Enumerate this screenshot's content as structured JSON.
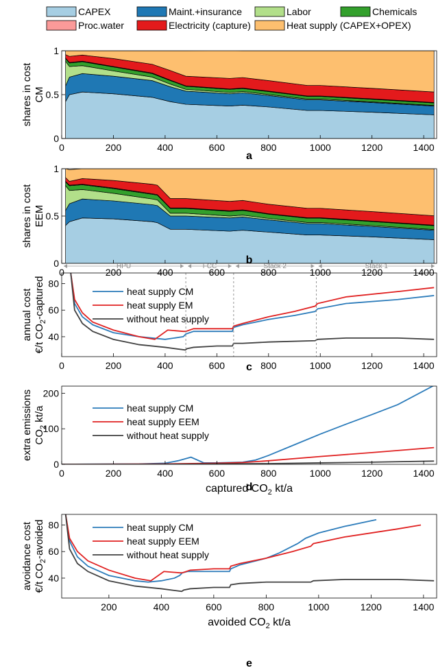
{
  "legend": {
    "items": [
      {
        "label": "CAPEX",
        "color": "#a6cee3"
      },
      {
        "label": "Maint.+insurance",
        "color": "#1f78b4"
      },
      {
        "label": "Labor",
        "color": "#b2df8a"
      },
      {
        "label": "Chemicals",
        "color": "#33a02c"
      },
      {
        "label": "Proc.water",
        "color": "#fb9a99"
      },
      {
        "label": "Electricity (capture)",
        "color": "#e31a1c"
      },
      {
        "label": "Heat supply (CAPEX+OPEX)",
        "color": "#fdbf6f"
      }
    ]
  },
  "chart_data": [
    {
      "id": "a",
      "type": "area",
      "letter": "a",
      "ylabel": [
        "shares in cost",
        "CM"
      ],
      "xlim": [
        0,
        1450
      ],
      "ylim": [
        0,
        1
      ],
      "xticks": [
        "0",
        "200",
        "400",
        "600",
        "800",
        "1000",
        "1200",
        "1400"
      ],
      "yticks": [
        "0",
        "0.5",
        "1"
      ],
      "x": [
        15,
        30,
        80,
        200,
        350,
        420,
        480,
        650,
        700,
        800,
        950,
        1000,
        1200,
        1440
      ],
      "series": [
        {
          "name": "CAPEX",
          "values": [
            0.42,
            0.5,
            0.53,
            0.51,
            0.47,
            0.42,
            0.39,
            0.37,
            0.38,
            0.36,
            0.32,
            0.32,
            0.3,
            0.27
          ]
        },
        {
          "name": "Maint.+insurance",
          "values": [
            0.18,
            0.2,
            0.21,
            0.2,
            0.19,
            0.17,
            0.15,
            0.14,
            0.14,
            0.13,
            0.12,
            0.12,
            0.11,
            0.1
          ]
        },
        {
          "name": "Labor",
          "values": [
            0.28,
            0.12,
            0.09,
            0.06,
            0.04,
            0.03,
            0.02,
            0.015,
            0.015,
            0.012,
            0.01,
            0.01,
            0.008,
            0.007
          ]
        },
        {
          "name": "Chemicals",
          "values": [
            0.03,
            0.04,
            0.045,
            0.045,
            0.04,
            0.04,
            0.035,
            0.035,
            0.035,
            0.033,
            0.03,
            0.03,
            0.029,
            0.028
          ]
        },
        {
          "name": "Proc.water",
          "values": [
            0.006,
            0.006,
            0.006,
            0.006,
            0.006,
            0.005,
            0.005,
            0.005,
            0.005,
            0.005,
            0.005,
            0.005,
            0.005,
            0.005
          ]
        },
        {
          "name": "Electricity (capture)",
          "values": [
            0.04,
            0.07,
            0.07,
            0.09,
            0.1,
            0.11,
            0.11,
            0.12,
            0.12,
            0.12,
            0.12,
            0.12,
            0.12,
            0.12
          ]
        },
        {
          "name": "Heat supply (CAPEX+OPEX)",
          "values": [
            0.044,
            0.064,
            0.049,
            0.089,
            0.154,
            0.225,
            0.29,
            0.32,
            0.305,
            0.34,
            0.395,
            0.395,
            0.428,
            0.47
          ]
        }
      ]
    },
    {
      "id": "b",
      "type": "area",
      "letter": "b",
      "ylabel": [
        "shares in cost",
        "EEM"
      ],
      "xlim": [
        0,
        1450
      ],
      "ylim": [
        0,
        1
      ],
      "xticks": [
        "0",
        "200",
        "400",
        "600",
        "800",
        "1000",
        "1200",
        "1400"
      ],
      "yticks": [
        "0",
        "0.5",
        "1"
      ],
      "x": [
        15,
        30,
        80,
        200,
        350,
        370,
        420,
        480,
        650,
        700,
        800,
        950,
        1000,
        1200,
        1440
      ],
      "series": [
        {
          "name": "CAPEX",
          "values": [
            0.4,
            0.44,
            0.48,
            0.47,
            0.44,
            0.43,
            0.36,
            0.36,
            0.34,
            0.35,
            0.33,
            0.3,
            0.3,
            0.28,
            0.25
          ]
        },
        {
          "name": "Maint.+insurance",
          "values": [
            0.16,
            0.19,
            0.2,
            0.19,
            0.18,
            0.18,
            0.14,
            0.14,
            0.14,
            0.14,
            0.13,
            0.12,
            0.12,
            0.11,
            0.1
          ]
        },
        {
          "name": "Labor",
          "values": [
            0.26,
            0.14,
            0.1,
            0.08,
            0.06,
            0.06,
            0.03,
            0.03,
            0.02,
            0.02,
            0.015,
            0.012,
            0.012,
            0.01,
            0.008
          ]
        },
        {
          "name": "Chemicals",
          "values": [
            0.04,
            0.05,
            0.05,
            0.05,
            0.05,
            0.05,
            0.05,
            0.05,
            0.05,
            0.05,
            0.045,
            0.045,
            0.045,
            0.042,
            0.04
          ]
        },
        {
          "name": "Proc.water",
          "values": [
            0.006,
            0.006,
            0.006,
            0.006,
            0.006,
            0.006,
            0.005,
            0.005,
            0.005,
            0.005,
            0.005,
            0.005,
            0.005,
            0.005,
            0.005
          ]
        },
        {
          "name": "Electricity (capture)",
          "values": [
            0.04,
            0.04,
            0.06,
            0.08,
            0.1,
            0.1,
            0.1,
            0.1,
            0.1,
            0.1,
            0.1,
            0.1,
            0.1,
            0.1,
            0.1
          ]
        },
        {
          "name": "Heat supply (CAPEX+OPEX)",
          "values": [
            0.094,
            0.124,
            0.104,
            0.124,
            0.164,
            0.174,
            0.315,
            0.315,
            0.345,
            0.335,
            0.375,
            0.418,
            0.418,
            0.453,
            0.497
          ]
        }
      ]
    },
    {
      "id": "c",
      "type": "line",
      "letter": "c",
      "ylabel": [
        "annual cost",
        "€/t CO₂-captured"
      ],
      "xlim": [
        0,
        1450
      ],
      "ylim": [
        25,
        88
      ],
      "xticks": [
        "0",
        "200",
        "400",
        "600",
        "800",
        "1000",
        "1200",
        "1400"
      ],
      "yticks": [
        "40",
        "60",
        "80"
      ],
      "regions": [
        {
          "label": "HPU",
          "from": 0,
          "to": 480
        },
        {
          "label": "FCC",
          "from": 480,
          "to": 665
        },
        {
          "label": "Stack 2",
          "from": 665,
          "to": 985
        },
        {
          "label": "Stack 1",
          "from": 985,
          "to": 1450
        }
      ],
      "series": [
        {
          "name": "heat supply CM",
          "color": "#2b7bba",
          "x": [
            35,
            50,
            80,
            120,
            200,
            300,
            400,
            470,
            480,
            510,
            600,
            660,
            665,
            700,
            800,
            900,
            980,
            990,
            1100,
            1300,
            1440
          ],
          "y": [
            88,
            65,
            55,
            49,
            43,
            40,
            38,
            40,
            42,
            44,
            44,
            44,
            47,
            49,
            53,
            56,
            59,
            61,
            65,
            68,
            71
          ]
        },
        {
          "name": "heat supply EM",
          "color": "#e02020",
          "x": [
            35,
            50,
            80,
            120,
            200,
            300,
            360,
            410,
            470,
            480,
            510,
            600,
            660,
            665,
            700,
            800,
            900,
            980,
            990,
            1100,
            1300,
            1440
          ],
          "y": [
            88,
            68,
            58,
            51,
            45,
            40,
            38,
            45,
            44,
            44,
            46,
            46,
            46,
            48,
            50,
            55,
            59,
            63,
            65,
            70,
            74,
            77
          ]
        },
        {
          "name": "without heat supply",
          "color": "#404040",
          "x": [
            35,
            50,
            80,
            120,
            200,
            300,
            400,
            478,
            485,
            510,
            600,
            660,
            665,
            700,
            800,
            980,
            990,
            1100,
            1300,
            1440
          ],
          "y": [
            88,
            60,
            50,
            44,
            38,
            34,
            32,
            30,
            31,
            32,
            33,
            33,
            35,
            35,
            36,
            37,
            38,
            39,
            39,
            38
          ]
        }
      ]
    },
    {
      "id": "d",
      "type": "line",
      "letter": "d",
      "ylabel": [
        "extra emissions",
        "CO₂ kt/a"
      ],
      "xlabel": "captured CO₂ kt/a",
      "xlim": [
        0,
        1450
      ],
      "ylim": [
        0,
        220
      ],
      "xticks": [
        "0",
        "200",
        "400",
        "600",
        "800",
        "1000",
        "1200",
        "1400"
      ],
      "yticks": [
        "0",
        "100",
        "200"
      ],
      "series": [
        {
          "name": "heat supply CM",
          "color": "#2b7bba",
          "x": [
            0,
            300,
            400,
            450,
            500,
            550,
            600,
            700,
            750,
            800,
            900,
            1000,
            1100,
            1200,
            1300,
            1440
          ],
          "y": [
            0,
            1,
            3,
            10,
            20,
            4,
            4,
            6,
            12,
            25,
            55,
            85,
            113,
            140,
            168,
            222
          ]
        },
        {
          "name": "heat supply EEM",
          "color": "#e02020",
          "x": [
            0,
            400,
            600,
            700,
            800,
            1000,
            1200,
            1440
          ],
          "y": [
            0,
            1,
            3,
            5,
            10,
            22,
            33,
            47
          ]
        },
        {
          "name": "without heat supply",
          "color": "#404040",
          "x": [
            0,
            400,
            800,
            1000,
            1200,
            1440
          ],
          "y": [
            0,
            0,
            2,
            4,
            6,
            9
          ]
        }
      ]
    },
    {
      "id": "e",
      "type": "line",
      "letter": "e",
      "ylabel": [
        "avoidance cost",
        "€/t CO₂-avoided"
      ],
      "xlabel": "avoided CO₂ kt/a",
      "xlim": [
        20,
        1450
      ],
      "ylim": [
        25,
        88
      ],
      "xticks": [
        "200",
        "400",
        "600",
        "800",
        "1000",
        "1200",
        "1400"
      ],
      "yticks": [
        "40",
        "60",
        "80"
      ],
      "series": [
        {
          "name": "heat supply CM",
          "color": "#2b7bba",
          "x": [
            35,
            50,
            80,
            120,
            200,
            300,
            350,
            400,
            450,
            470,
            480,
            500,
            600,
            660,
            665,
            700,
            800,
            850,
            900,
            920,
            950,
            1000,
            1100,
            1220
          ],
          "y": [
            88,
            68,
            56,
            49,
            42,
            38,
            37,
            38,
            40,
            42,
            44,
            45,
            45,
            45,
            47,
            50,
            55,
            59,
            64,
            66,
            70,
            74,
            79,
            84
          ]
        },
        {
          "name": "heat supply EEM",
          "color": "#e02020",
          "x": [
            35,
            50,
            80,
            120,
            200,
            300,
            360,
            410,
            470,
            480,
            510,
            600,
            660,
            665,
            700,
            800,
            900,
            970,
            980,
            1100,
            1300,
            1390
          ],
          "y": [
            88,
            70,
            60,
            53,
            46,
            40,
            38,
            45,
            44,
            44,
            46,
            47,
            47,
            49,
            51,
            55,
            60,
            64,
            66,
            71,
            77,
            80
          ]
        },
        {
          "name": "without heat supply",
          "color": "#404040",
          "x": [
            35,
            50,
            80,
            120,
            200,
            300,
            400,
            478,
            485,
            510,
            600,
            660,
            665,
            700,
            800,
            970,
            980,
            1100,
            1300,
            1440
          ],
          "y": [
            88,
            62,
            51,
            45,
            38,
            34,
            32,
            30,
            31,
            32,
            33,
            33,
            35,
            36,
            37,
            37,
            38,
            39,
            39,
            38
          ]
        }
      ]
    }
  ]
}
